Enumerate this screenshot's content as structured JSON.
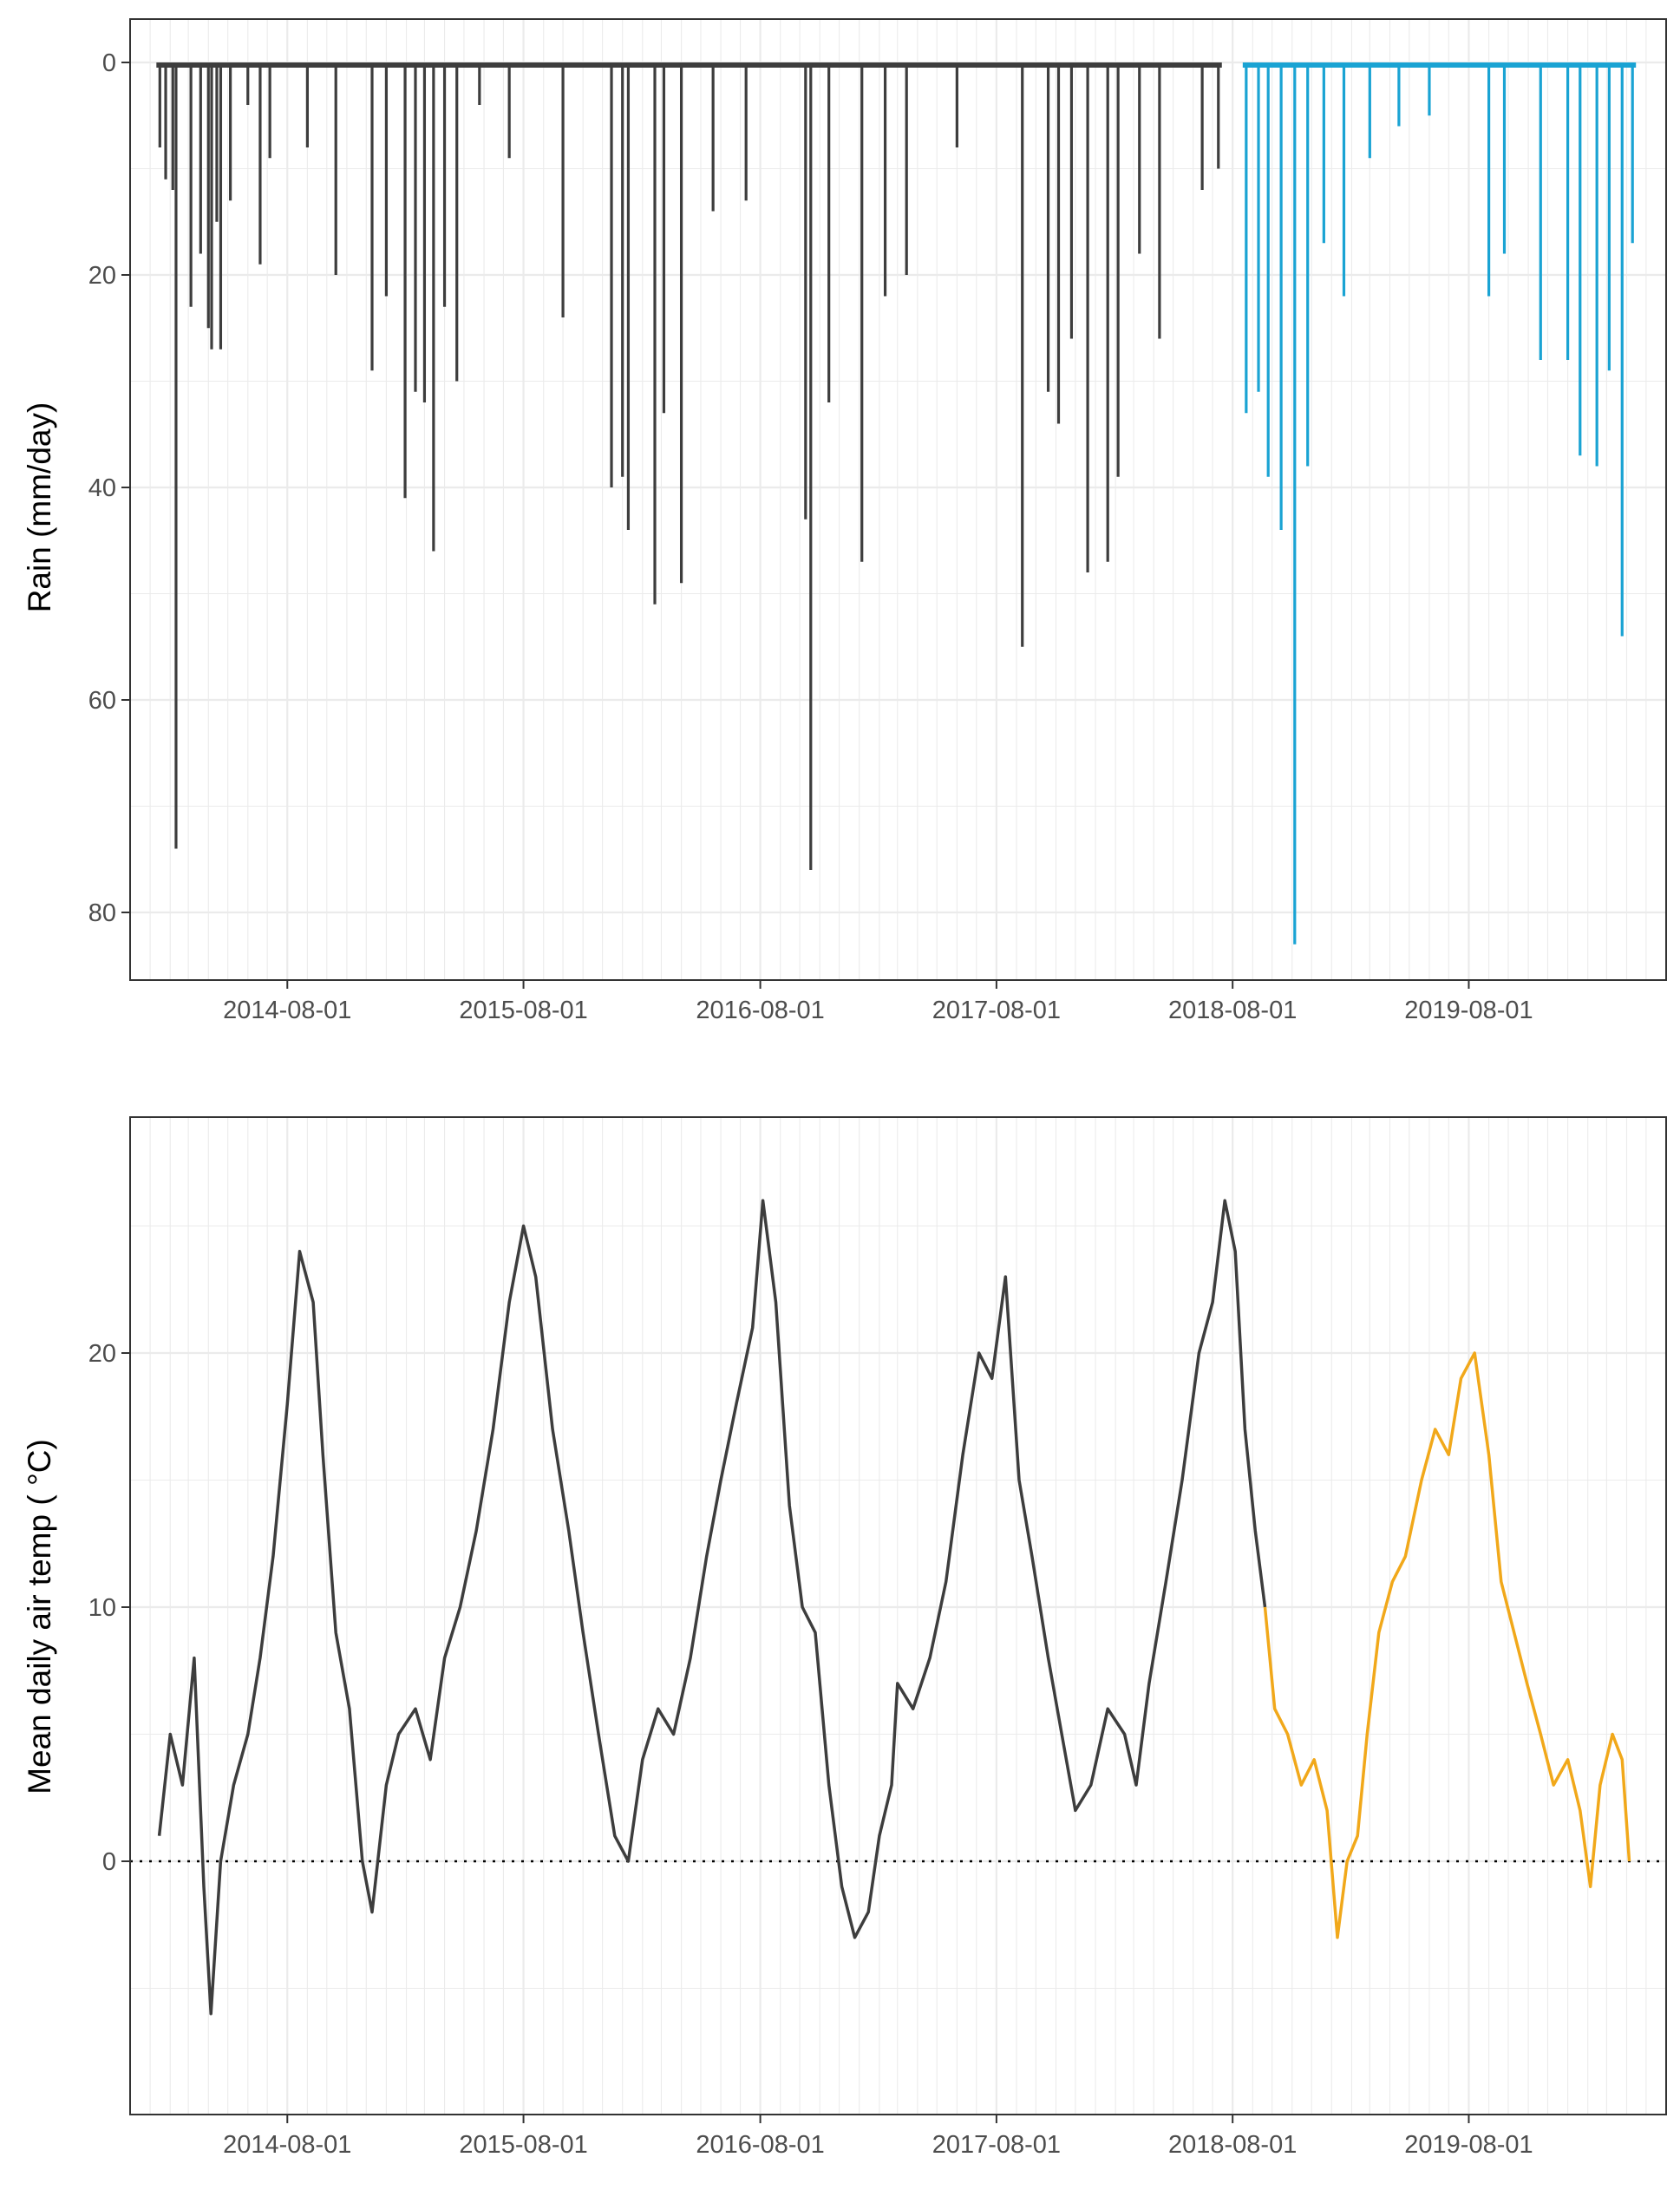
{
  "chart_data": [
    {
      "type": "bar",
      "ylabel": "Rain (mm/day)",
      "xlabel": "",
      "x_date_range": [
        "2013-12-01",
        "2020-06-01"
      ],
      "x_ticks": [
        "2014-08-01",
        "2015-08-01",
        "2016-08-01",
        "2017-08-01",
        "2018-08-01",
        "2019-08-01"
      ],
      "ylim": [
        0,
        87
      ],
      "y_reversed": true,
      "y_ticks": [
        0,
        20,
        40,
        60,
        80
      ],
      "grid": true,
      "colors": {
        "observed": "#3d3d3d",
        "recent": "#1aa3d3"
      },
      "series": [
        {
          "values": [
            [
              "2014-01-16",
              8
            ],
            [
              "2014-01-25",
              11
            ],
            [
              "2014-02-05",
              12
            ],
            [
              "2014-02-10",
              74
            ],
            [
              "2014-03-05",
              23
            ],
            [
              "2014-03-20",
              18
            ],
            [
              "2014-04-01",
              25
            ],
            [
              "2014-04-06",
              27
            ],
            [
              "2014-04-14",
              15
            ],
            [
              "2014-04-20",
              27
            ],
            [
              "2014-05-05",
              13
            ],
            [
              "2014-06-01",
              4
            ],
            [
              "2014-06-20",
              19
            ],
            [
              "2014-07-05",
              9
            ],
            [
              "2014-09-01",
              8
            ],
            [
              "2014-10-15",
              20
            ],
            [
              "2014-12-10",
              29
            ],
            [
              "2015-01-01",
              22
            ],
            [
              "2015-01-30",
              41
            ],
            [
              "2015-02-15",
              31
            ],
            [
              "2015-03-01",
              32
            ],
            [
              "2015-03-15",
              46
            ],
            [
              "2015-04-01",
              23
            ],
            [
              "2015-04-20",
              30
            ],
            [
              "2015-05-25",
              4
            ],
            [
              "2015-07-10",
              9
            ],
            [
              "2015-10-01",
              24
            ],
            [
              "2015-12-15",
              40
            ],
            [
              "2016-01-01",
              39
            ],
            [
              "2016-01-10",
              44
            ],
            [
              "2016-02-20",
              51
            ],
            [
              "2016-03-05",
              33
            ],
            [
              "2016-04-01",
              49
            ],
            [
              "2016-05-20",
              14
            ],
            [
              "2016-07-10",
              13
            ],
            [
              "2016-10-10",
              43
            ],
            [
              "2016-10-18",
              76
            ],
            [
              "2016-11-15",
              32
            ],
            [
              "2017-01-05",
              47
            ],
            [
              "2017-02-10",
              22
            ],
            [
              "2017-03-15",
              20
            ],
            [
              "2017-06-01",
              8
            ],
            [
              "2017-09-10",
              55
            ],
            [
              "2017-10-20",
              31
            ],
            [
              "2017-11-05",
              34
            ],
            [
              "2017-11-25",
              26
            ],
            [
              "2017-12-20",
              48
            ],
            [
              "2018-01-20",
              47
            ],
            [
              "2018-02-05",
              39
            ],
            [
              "2018-03-10",
              18
            ],
            [
              "2018-04-10",
              26
            ],
            [
              "2018-06-15",
              12
            ],
            [
              "2018-07-10",
              10
            ]
          ]
        },
        {
          "values": [
            [
              "2018-08-22",
              33
            ],
            [
              "2018-09-10",
              31
            ],
            [
              "2018-09-25",
              39
            ],
            [
              "2018-10-15",
              44
            ],
            [
              "2018-11-05",
              83
            ],
            [
              "2018-11-25",
              38
            ],
            [
              "2018-12-20",
              17
            ],
            [
              "2019-01-20",
              22
            ],
            [
              "2019-03-01",
              9
            ],
            [
              "2019-04-15",
              6
            ],
            [
              "2019-06-01",
              5
            ],
            [
              "2019-09-01",
              22
            ],
            [
              "2019-09-25",
              18
            ],
            [
              "2019-11-20",
              28
            ],
            [
              "2020-01-01",
              28
            ],
            [
              "2020-01-20",
              37
            ],
            [
              "2020-02-15",
              38
            ],
            [
              "2020-03-05",
              29
            ],
            [
              "2020-03-25",
              54
            ],
            [
              "2020-04-10",
              17
            ]
          ]
        }
      ]
    },
    {
      "type": "line",
      "ylabel": "Mean daily air temp ( °C)",
      "xlabel": "",
      "x_date_range": [
        "2013-12-01",
        "2020-06-01"
      ],
      "x_ticks": [
        "2014-08-01",
        "2015-08-01",
        "2016-08-01",
        "2017-08-01",
        "2018-08-01",
        "2019-08-01"
      ],
      "ylim": [
        -9.1,
        28.8
      ],
      "y_ticks": [
        0,
        10,
        20
      ],
      "reference_line": 0,
      "grid": true,
      "colors": {
        "observed": "#3d3d3d",
        "recent": "#f1a81a"
      },
      "series": [
        {
          "values": [
            [
              "2014-01-15",
              1
            ],
            [
              "2014-02-01",
              5
            ],
            [
              "2014-02-20",
              3
            ],
            [
              "2014-03-10",
              8
            ],
            [
              "2014-03-25",
              -1
            ],
            [
              "2014-04-05",
              -6
            ],
            [
              "2014-04-20",
              0
            ],
            [
              "2014-05-10",
              3
            ],
            [
              "2014-06-01",
              5
            ],
            [
              "2014-06-20",
              8
            ],
            [
              "2014-07-10",
              12
            ],
            [
              "2014-08-01",
              18
            ],
            [
              "2014-08-20",
              24
            ],
            [
              "2014-09-10",
              22
            ],
            [
              "2014-09-25",
              16
            ],
            [
              "2014-10-15",
              9
            ],
            [
              "2014-11-05",
              6
            ],
            [
              "2014-11-25",
              0
            ],
            [
              "2014-12-10",
              -2
            ],
            [
              "2015-01-01",
              3
            ],
            [
              "2015-01-20",
              5
            ],
            [
              "2015-02-15",
              6
            ],
            [
              "2015-03-10",
              4
            ],
            [
              "2015-04-01",
              8
            ],
            [
              "2015-04-25",
              10
            ],
            [
              "2015-05-20",
              13
            ],
            [
              "2015-06-15",
              17
            ],
            [
              "2015-07-10",
              22
            ],
            [
              "2015-08-01",
              25
            ],
            [
              "2015-08-20",
              23
            ],
            [
              "2015-09-15",
              17
            ],
            [
              "2015-10-10",
              13
            ],
            [
              "2015-11-01",
              9
            ],
            [
              "2015-11-25",
              5
            ],
            [
              "2015-12-20",
              1
            ],
            [
              "2016-01-10",
              0
            ],
            [
              "2016-02-01",
              4
            ],
            [
              "2016-02-25",
              6
            ],
            [
              "2016-03-20",
              5
            ],
            [
              "2016-04-15",
              8
            ],
            [
              "2016-05-10",
              12
            ],
            [
              "2016-06-01",
              15
            ],
            [
              "2016-06-25",
              18
            ],
            [
              "2016-07-20",
              21
            ],
            [
              "2016-08-05",
              26
            ],
            [
              "2016-08-25",
              22
            ],
            [
              "2016-09-15",
              14
            ],
            [
              "2016-10-05",
              10
            ],
            [
              "2016-10-25",
              9
            ],
            [
              "2016-11-15",
              3
            ],
            [
              "2016-12-05",
              -1
            ],
            [
              "2016-12-25",
              -3
            ],
            [
              "2017-01-15",
              -2
            ],
            [
              "2017-02-01",
              1
            ],
            [
              "2017-02-20",
              3
            ],
            [
              "2017-03-01",
              7
            ],
            [
              "2017-03-25",
              6
            ],
            [
              "2017-04-20",
              8
            ],
            [
              "2017-05-15",
              11
            ],
            [
              "2017-06-10",
              16
            ],
            [
              "2017-07-05",
              20
            ],
            [
              "2017-07-25",
              19
            ],
            [
              "2017-08-15",
              23
            ],
            [
              "2017-09-05",
              15
            ],
            [
              "2017-09-25",
              12
            ],
            [
              "2017-10-20",
              8
            ],
            [
              "2017-11-10",
              5
            ],
            [
              "2017-12-01",
              2
            ],
            [
              "2017-12-25",
              3
            ],
            [
              "2018-01-20",
              6
            ],
            [
              "2018-02-15",
              5
            ],
            [
              "2018-03-05",
              3
            ],
            [
              "2018-03-25",
              7
            ],
            [
              "2018-04-20",
              11
            ],
            [
              "2018-05-15",
              15
            ],
            [
              "2018-06-10",
              20
            ],
            [
              "2018-07-01",
              22
            ],
            [
              "2018-07-20",
              26
            ],
            [
              "2018-08-05",
              24
            ],
            [
              "2018-08-20",
              17
            ],
            [
              "2018-09-05",
              13
            ],
            [
              "2018-09-20",
              10
            ]
          ]
        },
        {
          "values": [
            [
              "2018-09-20",
              10
            ],
            [
              "2018-10-05",
              6
            ],
            [
              "2018-10-25",
              5
            ],
            [
              "2018-11-15",
              3
            ],
            [
              "2018-12-05",
              4
            ],
            [
              "2018-12-25",
              2
            ],
            [
              "2019-01-10",
              -3
            ],
            [
              "2019-01-25",
              0
            ],
            [
              "2019-02-10",
              1
            ],
            [
              "2019-02-25",
              5
            ],
            [
              "2019-03-15",
              9
            ],
            [
              "2019-04-05",
              11
            ],
            [
              "2019-04-25",
              12
            ],
            [
              "2019-05-20",
              15
            ],
            [
              "2019-06-10",
              17
            ],
            [
              "2019-07-01",
              16
            ],
            [
              "2019-07-20",
              19
            ],
            [
              "2019-08-10",
              20
            ],
            [
              "2019-09-01",
              16
            ],
            [
              "2019-09-20",
              11
            ],
            [
              "2019-10-10",
              9
            ],
            [
              "2019-10-30",
              7
            ],
            [
              "2019-11-20",
              5
            ],
            [
              "2019-12-10",
              3
            ],
            [
              "2020-01-01",
              4
            ],
            [
              "2020-01-20",
              2
            ],
            [
              "2020-02-05",
              -1
            ],
            [
              "2020-02-20",
              3
            ],
            [
              "2020-03-10",
              5
            ],
            [
              "2020-03-25",
              4
            ],
            [
              "2020-04-05",
              0
            ]
          ]
        }
      ]
    }
  ]
}
